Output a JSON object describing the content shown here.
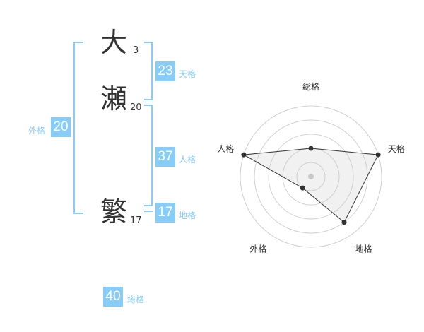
{
  "name": {
    "chars": [
      {
        "char": "大",
        "strokes": "3"
      },
      {
        "char": "瀬",
        "strokes": "20"
      },
      {
        "char": "繁",
        "strokes": "17"
      }
    ]
  },
  "kaku": {
    "tenkaku": {
      "value": "23",
      "label": "天格"
    },
    "jinkaku": {
      "value": "37",
      "label": "人格"
    },
    "chikaku": {
      "value": "17",
      "label": "地格"
    },
    "gaikaku": {
      "value": "20",
      "label": "外格"
    },
    "soukaku": {
      "value": "40",
      "label": "総格"
    }
  },
  "colors": {
    "accent": "#88cdf8",
    "text": "#333333"
  },
  "chart_data": {
    "type": "radar",
    "axes": [
      "総格",
      "天格",
      "地格",
      "外格",
      "人格"
    ],
    "values": [
      2,
      5,
      4,
      1,
      5
    ],
    "range": [
      0,
      5
    ],
    "rings": 5
  }
}
